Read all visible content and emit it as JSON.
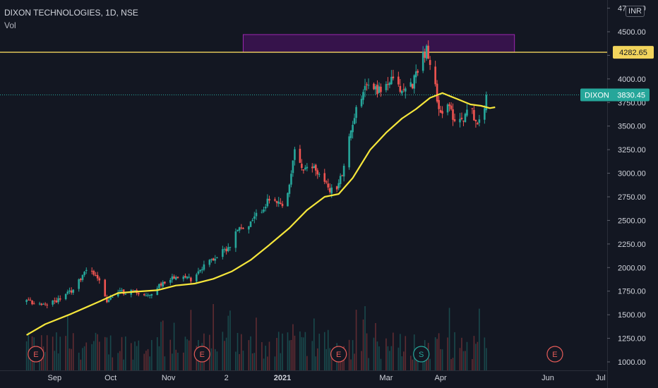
{
  "header": {
    "symbol_line": "DIXON TECHNOLOGIES, 1D, NSE",
    "indicator": "Vol",
    "currency": "INR"
  },
  "colors": {
    "background": "#131722",
    "up": "#26a69a",
    "down": "#ef5350",
    "ma": "#f5e63b",
    "resistance": "#f2d45c",
    "zone_fill": "#3d1352",
    "zone_border": "#9c27b0",
    "axis_text": "#d1d4dc"
  },
  "chart_data": {
    "type": "candlestick",
    "title": "DIXON TECHNOLOGIES, 1D, NSE",
    "y_axis": {
      "ticks": [
        "1000.00",
        "1250.00",
        "1500.00",
        "1750.00",
        "2000.00",
        "2250.00",
        "2500.00",
        "2750.00",
        "3000.00",
        "3250.00",
        "3500.00",
        "3750.00",
        "4000.00",
        "4250.00",
        "4500.00",
        "4750.00"
      ],
      "tick_values": [
        1000,
        1250,
        1500,
        1750,
        2000,
        2250,
        2500,
        2750,
        3000,
        3250,
        3500,
        3750,
        4000,
        4250,
        4500,
        4750
      ]
    },
    "x_axis": {
      "labels": [
        "Sep",
        "Oct",
        "Nov",
        "2",
        "2021",
        "Mar",
        "Apr",
        "Jun",
        "Jul"
      ],
      "label_dates": [
        "2020-09-01",
        "2020-10-01",
        "2020-11-01",
        "2020-12-02",
        "2021-01-01",
        "2021-03-01",
        "2021-04-01",
        "2021-06-01",
        "2021-07-01"
      ],
      "bold": [
        "2021"
      ]
    },
    "last_price": {
      "label": "DIXON",
      "value": 3830.45,
      "text": "3830.45"
    },
    "resistance": {
      "value": 4282.65,
      "text": "4282.65"
    },
    "supply_zone": {
      "from": "2020-12-11",
      "to": "2021-05-13",
      "low": 4282.65,
      "high": 4470
    },
    "price_path": [
      [
        "2020-08-17",
        1640
      ],
      [
        "2020-08-27",
        1600
      ],
      [
        "2020-09-05",
        1680
      ],
      [
        "2020-09-12",
        1780
      ],
      [
        "2020-09-18",
        2000
      ],
      [
        "2020-09-24",
        1900
      ],
      [
        "2020-09-29",
        1650
      ],
      [
        "2020-10-06",
        1740
      ],
      [
        "2020-10-14",
        1750
      ],
      [
        "2020-10-21",
        1690
      ],
      [
        "2020-10-28",
        1830
      ],
      [
        "2020-11-05",
        1920
      ],
      [
        "2020-11-13",
        1880
      ],
      [
        "2020-11-20",
        2030
      ],
      [
        "2020-11-28",
        2130
      ],
      [
        "2020-12-04",
        2240
      ],
      [
        "2020-12-09",
        2450
      ],
      [
        "2020-12-12",
        2380
      ],
      [
        "2020-12-18",
        2550
      ],
      [
        "2020-12-25",
        2720
      ],
      [
        "2021-01-01",
        2640
      ],
      [
        "2021-01-05",
        2840
      ],
      [
        "2021-01-08",
        3260
      ],
      [
        "2021-01-13",
        3020
      ],
      [
        "2021-01-19",
        3070
      ],
      [
        "2021-01-25",
        2900
      ],
      [
        "2021-01-31",
        2780
      ],
      [
        "2021-02-05",
        3050
      ],
      [
        "2021-02-10",
        3550
      ],
      [
        "2021-02-17",
        3950
      ],
      [
        "2021-02-25",
        3880
      ],
      [
        "2021-03-04",
        3980
      ],
      [
        "2021-03-10",
        3870
      ],
      [
        "2021-03-16",
        3950
      ],
      [
        "2021-03-21",
        4240
      ],
      [
        "2021-03-24",
        4300
      ],
      [
        "2021-03-28",
        3980
      ],
      [
        "2021-04-01",
        3650
      ],
      [
        "2021-04-06",
        3690
      ],
      [
        "2021-04-10",
        3540
      ],
      [
        "2021-04-14",
        3600
      ],
      [
        "2021-04-18",
        3700
      ],
      [
        "2021-04-22",
        3520
      ],
      [
        "2021-04-25",
        3560
      ],
      [
        "2021-04-27",
        3830
      ]
    ],
    "moving_average": [
      [
        "2020-08-17",
        1285
      ],
      [
        "2020-08-27",
        1400
      ],
      [
        "2020-09-10",
        1510
      ],
      [
        "2020-09-25",
        1640
      ],
      [
        "2020-10-05",
        1730
      ],
      [
        "2020-10-15",
        1745
      ],
      [
        "2020-10-26",
        1760
      ],
      [
        "2020-11-05",
        1810
      ],
      [
        "2020-11-15",
        1830
      ],
      [
        "2020-11-25",
        1880
      ],
      [
        "2020-12-05",
        1960
      ],
      [
        "2020-12-15",
        2080
      ],
      [
        "2020-12-25",
        2240
      ],
      [
        "2021-01-05",
        2420
      ],
      [
        "2021-01-15",
        2610
      ],
      [
        "2021-01-25",
        2750
      ],
      [
        "2021-02-02",
        2780
      ],
      [
        "2021-02-10",
        2950
      ],
      [
        "2021-02-20",
        3250
      ],
      [
        "2021-03-01",
        3430
      ],
      [
        "2021-03-10",
        3580
      ],
      [
        "2021-03-18",
        3680
      ],
      [
        "2021-03-26",
        3800
      ],
      [
        "2021-04-02",
        3850
      ],
      [
        "2021-04-10",
        3790
      ],
      [
        "2021-04-18",
        3730
      ],
      [
        "2021-04-24",
        3715
      ],
      [
        "2021-04-29",
        3690
      ],
      [
        "2021-05-02",
        3700
      ]
    ],
    "earnings_markers": [
      {
        "label": "E",
        "date": "2020-08-22"
      },
      {
        "label": "E",
        "date": "2020-11-19"
      },
      {
        "label": "E",
        "date": "2021-02-02"
      },
      {
        "label": "S",
        "date": "2021-03-21"
      },
      {
        "label": "E",
        "date": "2021-06-05"
      }
    ],
    "grid": false,
    "has_volume": true
  }
}
